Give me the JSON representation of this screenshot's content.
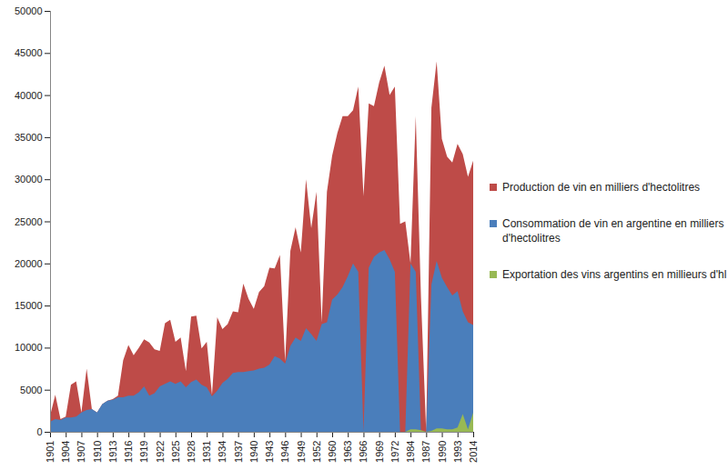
{
  "chart_data": {
    "type": "area",
    "categories": [
      "1901",
      null,
      null,
      "1904",
      null,
      null,
      "1907",
      null,
      null,
      "1910",
      null,
      null,
      "1913",
      null,
      null,
      "1916",
      null,
      null,
      "1919",
      null,
      null,
      "1922",
      null,
      null,
      "1925",
      null,
      null,
      "1928",
      null,
      null,
      "1931",
      null,
      null,
      "1934",
      null,
      null,
      "1937",
      null,
      null,
      "1940",
      null,
      null,
      "1943",
      null,
      null,
      "1946",
      null,
      null,
      "1949",
      null,
      null,
      "1952",
      null,
      null,
      "1960",
      null,
      null,
      "1963",
      null,
      null,
      "1966",
      null,
      null,
      "1969",
      null,
      null,
      "1972",
      null,
      null,
      "1984",
      null,
      null,
      "1987",
      null,
      null,
      "1990",
      null,
      null,
      "1993",
      null,
      null,
      "2014"
    ],
    "series": [
      {
        "name": "Production de vin en milliers d'hectolitres",
        "color": "#be4b48",
        "values": [
          1900,
          4400,
          1500,
          1800,
          5600,
          6000,
          2300,
          7500,
          2700,
          2300,
          3300,
          3700,
          3900,
          4300,
          8500,
          10300,
          9100,
          10000,
          11000,
          10600,
          9800,
          9600,
          12900,
          13300,
          10700,
          11200,
          7200,
          13700,
          13800,
          9900,
          10700,
          4400,
          13600,
          12200,
          12800,
          14300,
          14200,
          17600,
          15800,
          14600,
          16600,
          17300,
          19500,
          19400,
          21000,
          8400,
          21500,
          24300,
          21300,
          30000,
          24200,
          28500,
          13000,
          28500,
          32800,
          35500,
          37500,
          37500,
          38200,
          41000,
          28000,
          39000,
          38700,
          41500,
          43500,
          40000,
          41000,
          24700,
          25000,
          20000,
          37500,
          16000,
          0,
          38500,
          44000,
          34800,
          32700,
          32000,
          34200,
          33000,
          30300,
          32200
        ]
      },
      {
        "name": "Consommation de vin en argentine en milliers d'hectolitres",
        "color": "#4a7ebb",
        "values": [
          1200,
          1500,
          1400,
          1700,
          1700,
          1800,
          2300,
          2600,
          2700,
          2300,
          3300,
          3700,
          3800,
          4100,
          4100,
          4300,
          4300,
          4700,
          5400,
          4300,
          4600,
          5400,
          5700,
          6000,
          5700,
          6000,
          5300,
          5900,
          6200,
          5600,
          5300,
          4200,
          4900,
          5800,
          6300,
          7000,
          7100,
          7100,
          7200,
          7300,
          7500,
          7600,
          8000,
          9000,
          8700,
          8100,
          10200,
          11200,
          10800,
          12300,
          11600,
          10800,
          12800,
          13000,
          15700,
          16300,
          17200,
          18500,
          20000,
          19000,
          0,
          19500,
          20800,
          21300,
          21600,
          20500,
          19000,
          0,
          0,
          20000,
          19000,
          0,
          0,
          17500,
          20300,
          18300,
          17200,
          16200,
          16700,
          14300,
          13000,
          12700
        ]
      },
      {
        "name": "Exportation des vins argentins en millieurs d'hl",
        "color": "#98b954",
        "values": [
          0,
          0,
          0,
          0,
          0,
          0,
          0,
          0,
          0,
          0,
          0,
          0,
          0,
          0,
          0,
          0,
          0,
          0,
          0,
          0,
          0,
          0,
          0,
          0,
          0,
          0,
          0,
          0,
          0,
          0,
          0,
          0,
          0,
          0,
          0,
          0,
          0,
          0,
          0,
          0,
          0,
          0,
          0,
          0,
          0,
          0,
          0,
          0,
          0,
          0,
          0,
          0,
          0,
          0,
          0,
          0,
          0,
          0,
          0,
          0,
          0,
          0,
          0,
          0,
          0,
          0,
          0,
          0,
          0,
          300,
          300,
          200,
          0,
          100,
          400,
          400,
          300,
          300,
          500,
          2100,
          300,
          2300
        ]
      }
    ],
    "ylim": [
      0,
      50000
    ],
    "yticks": [
      0,
      5000,
      10000,
      15000,
      20000,
      25000,
      30000,
      35000,
      40000,
      45000,
      50000
    ],
    "grid": false,
    "stacked": false,
    "legend": "right"
  }
}
